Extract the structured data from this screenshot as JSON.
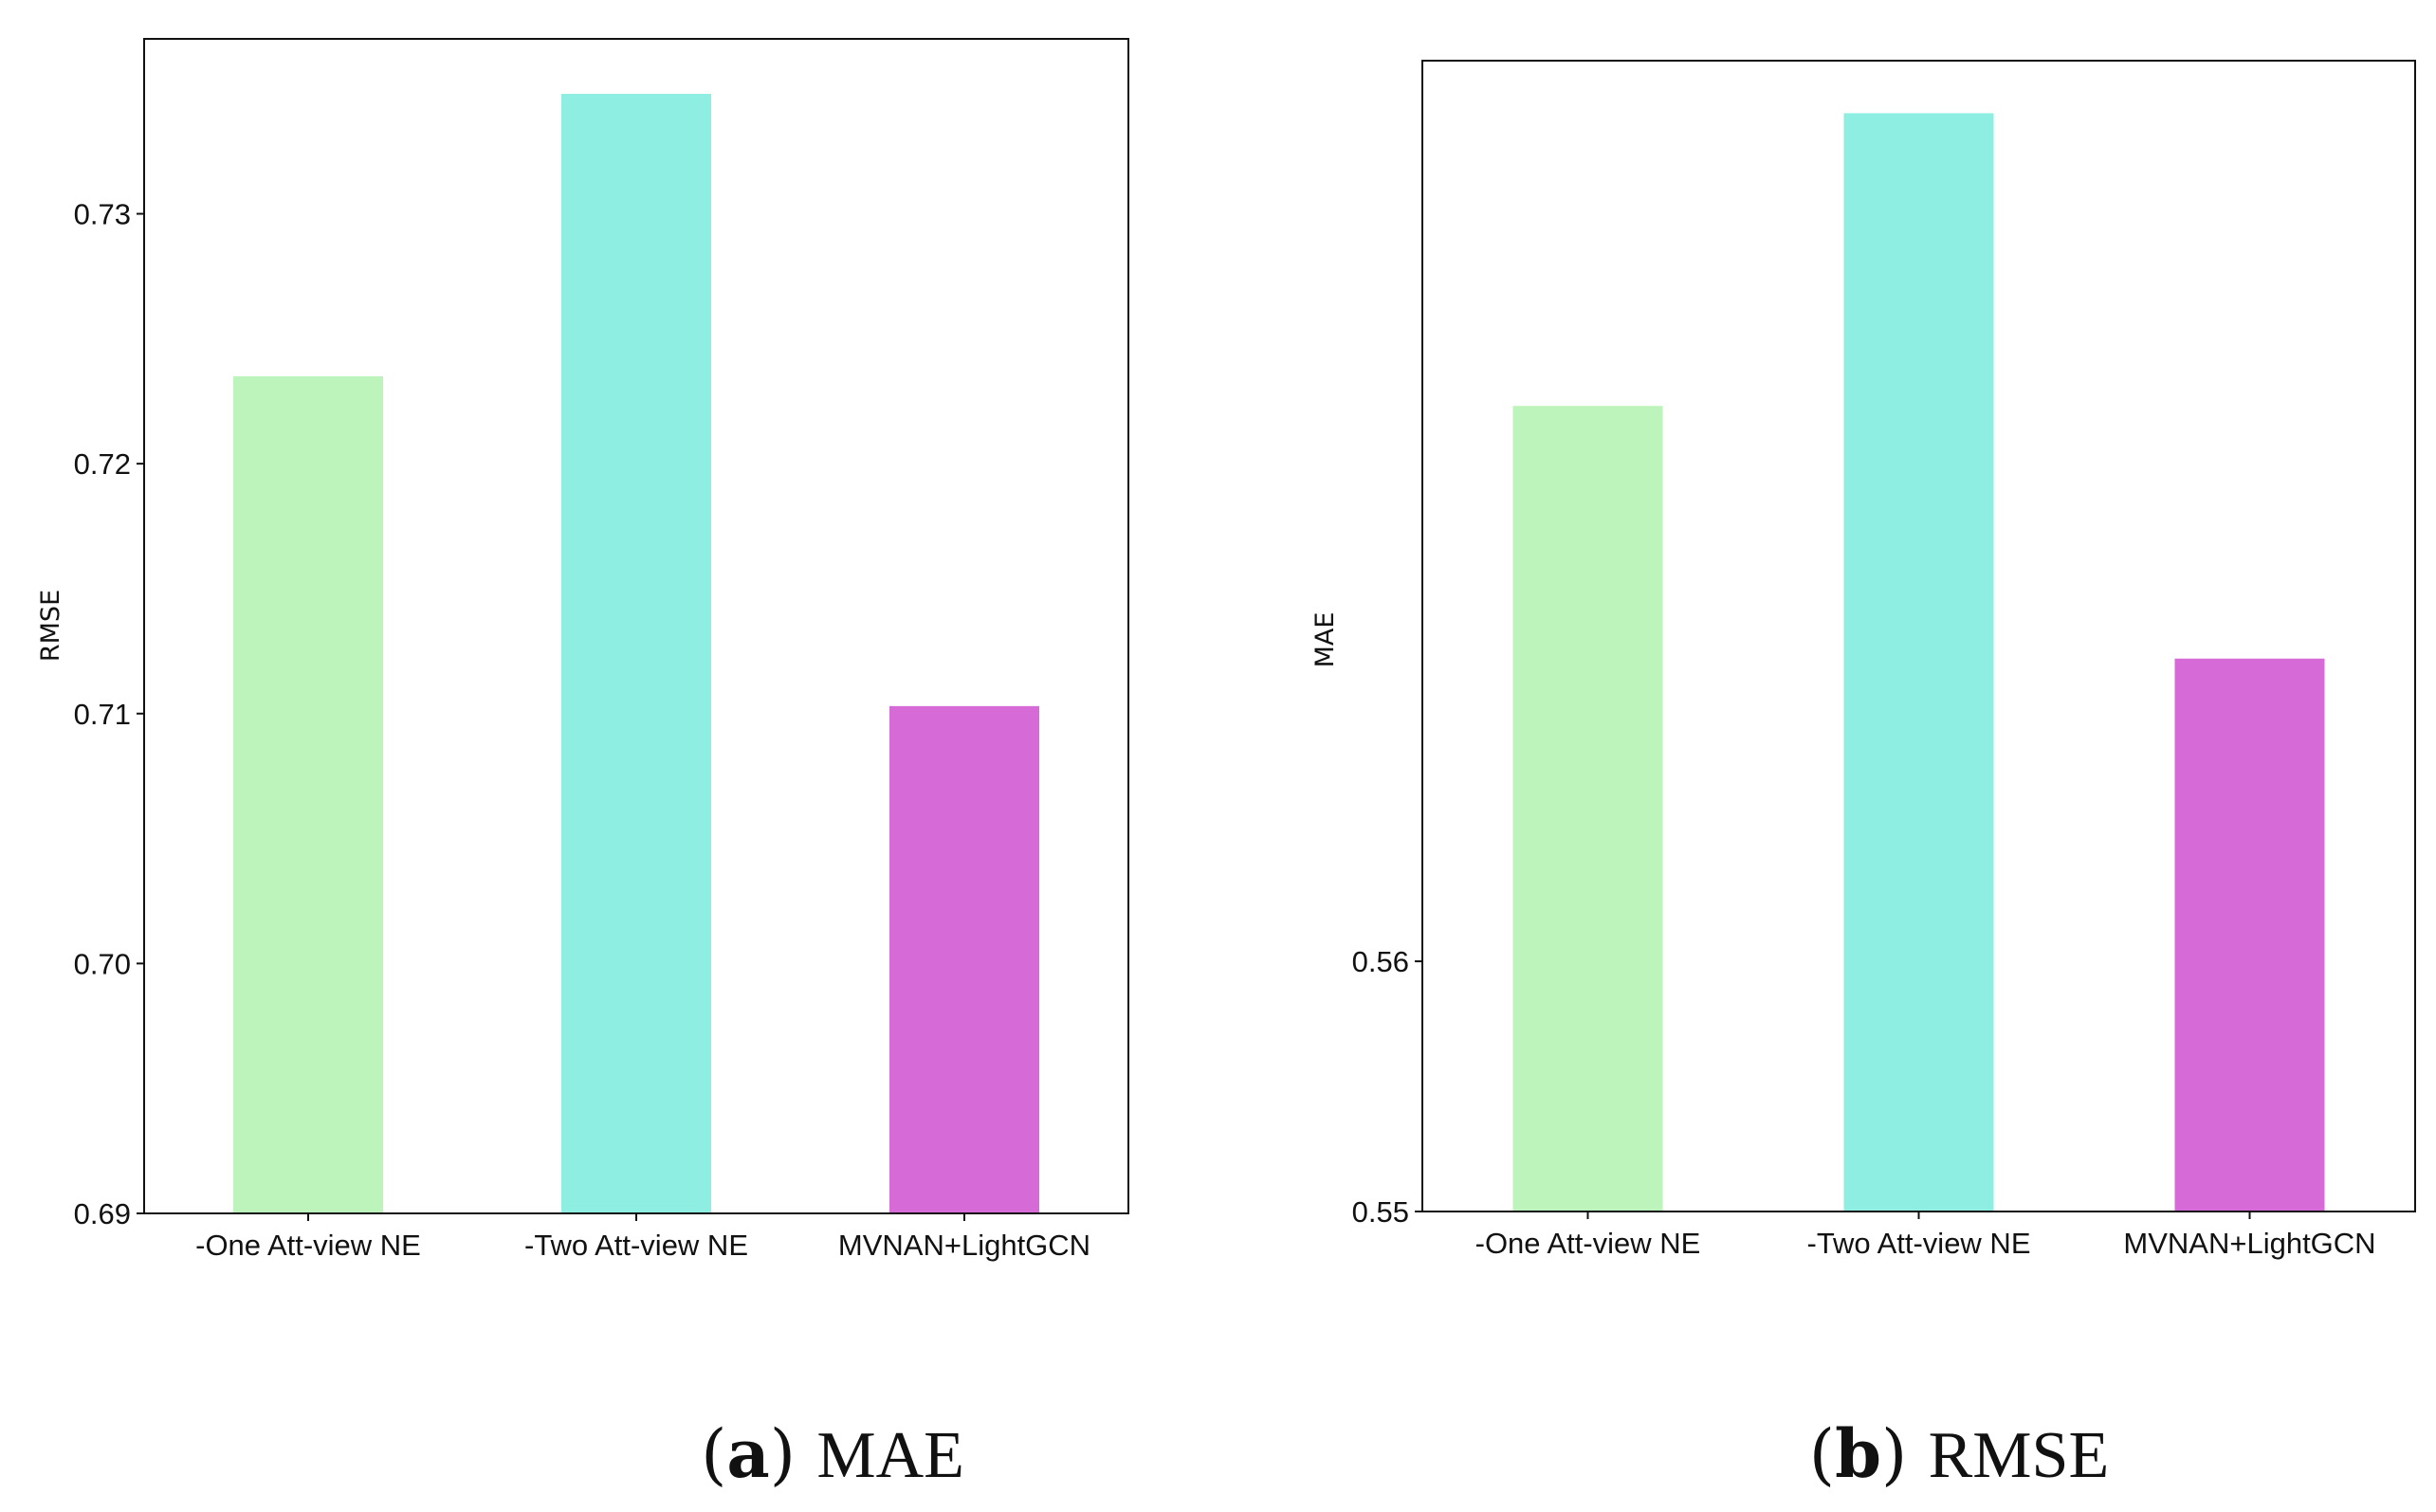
{
  "chart_data": [
    {
      "type": "bar",
      "caption_letter": "a",
      "caption_text": "MAE",
      "ylabel": "RMSE",
      "xlabel": "",
      "categories": [
        "-One Att-view NE",
        "-Two Att-view NE",
        "MVNAN+LightGCN"
      ],
      "values": [
        0.7235,
        0.7348,
        0.7103
      ],
      "colors": [
        "#bdf4bb",
        "#8deee1",
        "#d66ad7"
      ],
      "ylim": [
        0.69,
        0.737
      ],
      "yticks": [
        0.69,
        0.7,
        0.71,
        0.72,
        0.73
      ],
      "ytick_labels": [
        "0.69",
        "0.70",
        "0.71",
        "0.72",
        "0.73"
      ],
      "grid": false,
      "legend": "none"
    },
    {
      "type": "bar",
      "caption_letter": "b",
      "caption_text": "RMSE",
      "ylabel": "MAE",
      "xlabel": "",
      "categories": [
        "-One Att-view NE",
        "-Two Att-view NE",
        "MVNAN+LightGCN"
      ],
      "values": [
        0.5822,
        0.5939,
        0.5721
      ],
      "colors": [
        "#bdf4bb",
        "#8deee1",
        "#d66ad7"
      ],
      "ylim": [
        0.55,
        0.596
      ],
      "yticks": [
        0.55,
        0.56
      ],
      "ytick_labels": [
        "0.55",
        "0.56"
      ],
      "grid": false,
      "legend": "none"
    }
  ]
}
